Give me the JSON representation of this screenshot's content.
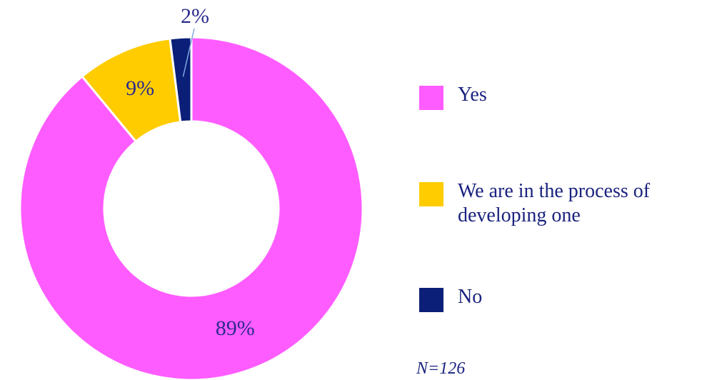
{
  "chart_data": {
    "type": "pie",
    "categories": [
      "Yes",
      "We are in the process of developing one",
      "No"
    ],
    "values": [
      89,
      9,
      2
    ],
    "value_labels": [
      "89%",
      "9%",
      "2%"
    ],
    "colors": [
      "#ff5cff",
      "#ffcc00",
      "#0b1f78"
    ],
    "annotation": "N=126"
  }
}
